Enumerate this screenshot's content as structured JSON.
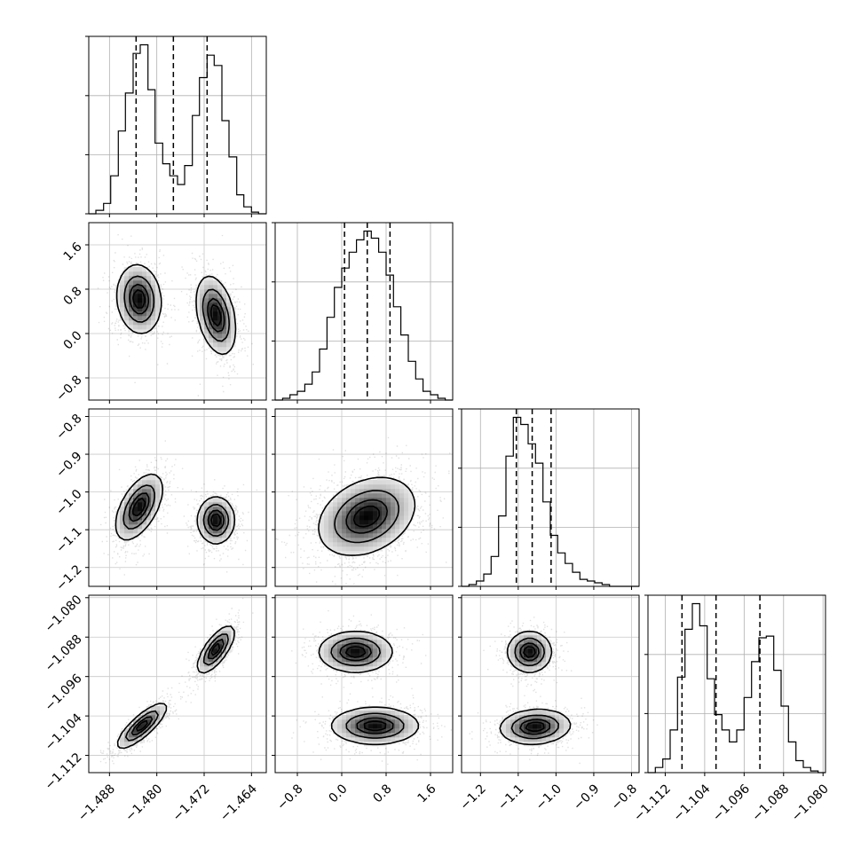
{
  "chart_data": {
    "type": "corner",
    "parameters": [
      {
        "range": [
          -1.4915,
          -1.4615
        ],
        "ticks": [
          -1.488,
          -1.48,
          -1.472,
          -1.464
        ],
        "tick_labels": [
          "−1.488",
          "−1.480",
          "−1.472",
          "−1.464"
        ],
        "quantiles": [
          -1.4835,
          -1.4772,
          -1.4715
        ],
        "hist_bins": [
          -1.4915,
          -1.4903,
          -1.489,
          -1.4878,
          -1.4865,
          -1.4853,
          -1.484,
          -1.4828,
          -1.4815,
          -1.4803,
          -1.479,
          -1.4778,
          -1.4765,
          -1.4753,
          -1.474,
          -1.4728,
          -1.4715,
          -1.4703,
          -1.469,
          -1.4678,
          -1.4665,
          -1.4653,
          -1.464,
          -1.4628,
          -1.4615
        ],
        "hist_counts": [
          0,
          2,
          6,
          22,
          48,
          70,
          93,
          98,
          72,
          41,
          29,
          22,
          17,
          28,
          57,
          79,
          92,
          86,
          54,
          33,
          11,
          4,
          1,
          0
        ]
      },
      {
        "range": [
          -1.2,
          2.0
        ],
        "ticks": [
          -0.8,
          0.0,
          0.8,
          1.6
        ],
        "tick_labels": [
          "−0.8",
          "0.0",
          "0.8",
          "1.6"
        ],
        "quantiles": [
          0.05,
          0.46,
          0.87
        ],
        "hist_bins": [
          -1.2,
          -1.066,
          -0.933,
          -0.8,
          -0.666,
          -0.533,
          -0.4,
          -0.266,
          -0.133,
          0.0,
          0.133,
          0.266,
          0.4,
          0.533,
          0.666,
          0.8,
          0.933,
          1.066,
          1.2,
          1.333,
          1.466,
          1.6,
          1.733,
          1.866,
          2.0
        ],
        "hist_counts": [
          0,
          1,
          3,
          5,
          9,
          16,
          29,
          47,
          64,
          75,
          84,
          91,
          96,
          92,
          84,
          71,
          53,
          37,
          22,
          12,
          5,
          3,
          1,
          0
        ]
      },
      {
        "range": [
          -1.25,
          -0.78
        ],
        "ticks": [
          -1.2,
          -1.1,
          -1.0,
          -0.9,
          -0.8
        ],
        "tick_labels": [
          "−1.2",
          "−1.1",
          "−1.0",
          "−0.9",
          "−0.8"
        ],
        "quantiles": [
          -1.105,
          -1.063,
          -1.013
        ],
        "hist_bins": [
          -1.25,
          -1.2304,
          -1.2108,
          -1.1913,
          -1.1717,
          -1.1521,
          -1.1325,
          -1.1129,
          -1.0933,
          -1.0738,
          -1.0542,
          -1.0346,
          -1.015,
          -0.9954,
          -0.9758,
          -0.9563,
          -0.9367,
          -0.9171,
          -0.8975,
          -0.8779,
          -0.8583,
          -0.8388,
          -0.8192,
          -0.7996,
          -0.78
        ],
        "hist_counts": [
          0,
          1,
          3,
          7,
          17,
          40,
          74,
          96,
          92,
          81,
          70,
          48,
          29,
          19,
          13,
          8,
          4,
          3,
          2,
          1,
          0,
          0,
          0,
          0
        ]
      },
      {
        "range": [
          -1.1155,
          -1.0795
        ],
        "ticks": [
          -1.112,
          -1.104,
          -1.096,
          -1.088,
          -1.08
        ],
        "tick_labels": [
          "−1.112",
          "−1.104",
          "−1.096",
          "−1.088",
          "−1.080"
        ],
        "quantiles": [
          -1.1086,
          -1.1017,
          -1.0928
        ],
        "hist_bins": [
          -1.1155,
          -1.114,
          -1.1125,
          -1.111,
          -1.1095,
          -1.108,
          -1.1065,
          -1.105,
          -1.1035,
          -1.102,
          -1.1005,
          -1.099,
          -1.0975,
          -1.096,
          -1.0945,
          -1.093,
          -1.0915,
          -1.09,
          -1.0885,
          -1.087,
          -1.0855,
          -1.084,
          -1.0825,
          -1.081,
          -1.0795
        ],
        "hist_counts": [
          0,
          3,
          8,
          25,
          56,
          84,
          99,
          86,
          55,
          34,
          25,
          18,
          25,
          44,
          65,
          79,
          80,
          60,
          39,
          18,
          7,
          3,
          1,
          0
        ]
      }
    ],
    "pairs": [
      {
        "row": 1,
        "col": 0,
        "modes": [
          {
            "x": -1.483,
            "y": 0.62,
            "sx": 0.0018,
            "sy": 0.3,
            "rho": -0.1,
            "w": 0.5
          },
          {
            "x": -1.47,
            "y": 0.33,
            "sx": 0.0016,
            "sy": 0.34,
            "rho": -0.35,
            "w": 0.5
          }
        ]
      },
      {
        "row": 2,
        "col": 0,
        "modes": [
          {
            "x": -1.483,
            "y": -1.04,
            "sx": 0.0019,
            "sy": 0.042,
            "rho": 0.55,
            "w": 0.5
          },
          {
            "x": -1.47,
            "y": -1.075,
            "sx": 0.0015,
            "sy": 0.03,
            "rho": 0.0,
            "w": 0.5
          }
        ]
      },
      {
        "row": 2,
        "col": 1,
        "modes": [
          {
            "x": 0.45,
            "y": -1.065,
            "sx": 0.42,
            "sy": 0.05,
            "rho": 0.3,
            "w": 1.0
          }
        ]
      },
      {
        "row": 3,
        "col": 0,
        "modes": [
          {
            "x": -1.4825,
            "y": -1.106,
            "sx": 0.002,
            "sy": 0.0022,
            "rho": 0.82,
            "w": 0.5
          },
          {
            "x": -1.47,
            "y": -1.0905,
            "sx": 0.0015,
            "sy": 0.0023,
            "rho": 0.72,
            "w": 0.5
          }
        ]
      },
      {
        "row": 3,
        "col": 1,
        "modes": [
          {
            "x": 0.25,
            "y": -1.091,
            "sx": 0.32,
            "sy": 0.002,
            "rho": 0.0,
            "w": 0.5
          },
          {
            "x": 0.6,
            "y": -1.106,
            "sx": 0.38,
            "sy": 0.0018,
            "rho": 0.0,
            "w": 0.5
          }
        ]
      },
      {
        "row": 3,
        "col": 2,
        "modes": [
          {
            "x": -1.07,
            "y": -1.091,
            "sx": 0.028,
            "sy": 0.002,
            "rho": 0.0,
            "w": 0.5
          },
          {
            "x": -1.055,
            "y": -1.1062,
            "sx": 0.045,
            "sy": 0.0017,
            "rho": 0.1,
            "w": 0.5
          }
        ]
      }
    ],
    "grid": true,
    "contour_levels": [
      0.12,
      0.39,
      0.68,
      0.86
    ]
  }
}
